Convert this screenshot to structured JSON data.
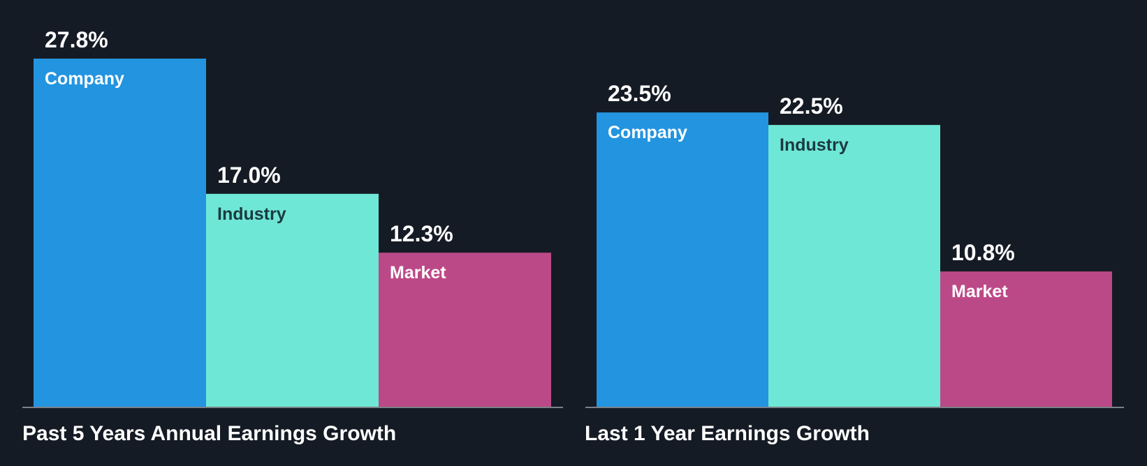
{
  "colors": {
    "background": "#151b24",
    "company": "#2394e0",
    "industry": "#6fe7d6",
    "market": "#bc4987",
    "axis": "#7c818a",
    "value_text": "#ffffff"
  },
  "chart_data": [
    {
      "type": "bar",
      "title": "Past 5 Years Annual Earnings Growth",
      "categories": [
        "Company",
        "Industry",
        "Market"
      ],
      "values": [
        27.8,
        17.0,
        12.3
      ],
      "value_labels": [
        "27.8%",
        "17.0%",
        "12.3%"
      ],
      "unit": "%",
      "ylim": [
        0,
        27.8
      ],
      "grid": false,
      "legend": "none"
    },
    {
      "type": "bar",
      "title": "Last 1 Year Earnings Growth",
      "categories": [
        "Company",
        "Industry",
        "Market"
      ],
      "values": [
        23.5,
        22.5,
        10.8
      ],
      "value_labels": [
        "23.5%",
        "22.5%",
        "10.8%"
      ],
      "unit": "%",
      "ylim": [
        0,
        27.8
      ],
      "grid": false,
      "legend": "none"
    }
  ]
}
